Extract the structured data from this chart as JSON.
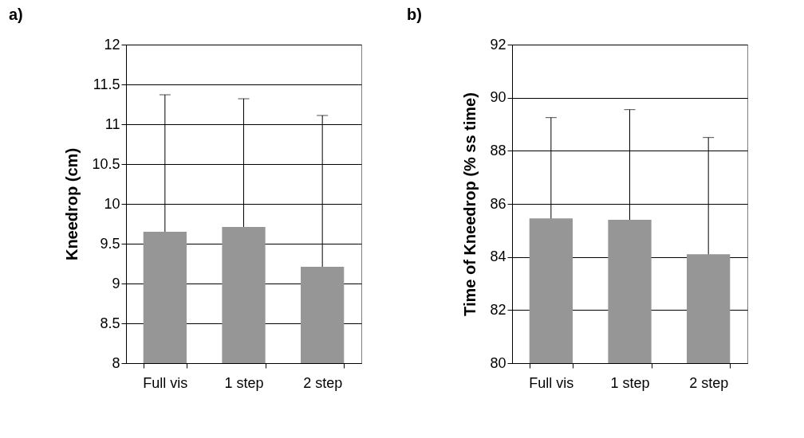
{
  "chart_data": [
    {
      "type": "bar",
      "title": "a)",
      "ylabel": "Kneedrop (cm)",
      "categories": [
        "Full vis",
        "1 step",
        "2 step"
      ],
      "values": [
        9.65,
        9.71,
        9.21
      ],
      "errors": [
        [
          9.65,
          11.37
        ],
        [
          9.71,
          11.32
        ],
        [
          9.21,
          11.11
        ]
      ],
      "color": "#969696",
      "ylim": [
        8,
        12
      ],
      "yticks": [
        8,
        8.5,
        9,
        9.5,
        10,
        10.5,
        11,
        11.5,
        12
      ],
      "grid": "y"
    },
    {
      "type": "bar",
      "title": "b)",
      "ylabel": "Time of Kneedrop (% ss time)",
      "categories": [
        "Full vis",
        "1 step",
        "2 step"
      ],
      "values": [
        85.45,
        85.4,
        84.1
      ],
      "errors": [
        [
          85.45,
          89.25
        ],
        [
          85.4,
          89.55
        ],
        [
          84.1,
          88.5
        ]
      ],
      "color": "#969696",
      "ylim": [
        80,
        92
      ],
      "yticks": [
        80,
        82,
        84,
        86,
        88,
        90,
        92
      ],
      "grid": "y"
    }
  ]
}
